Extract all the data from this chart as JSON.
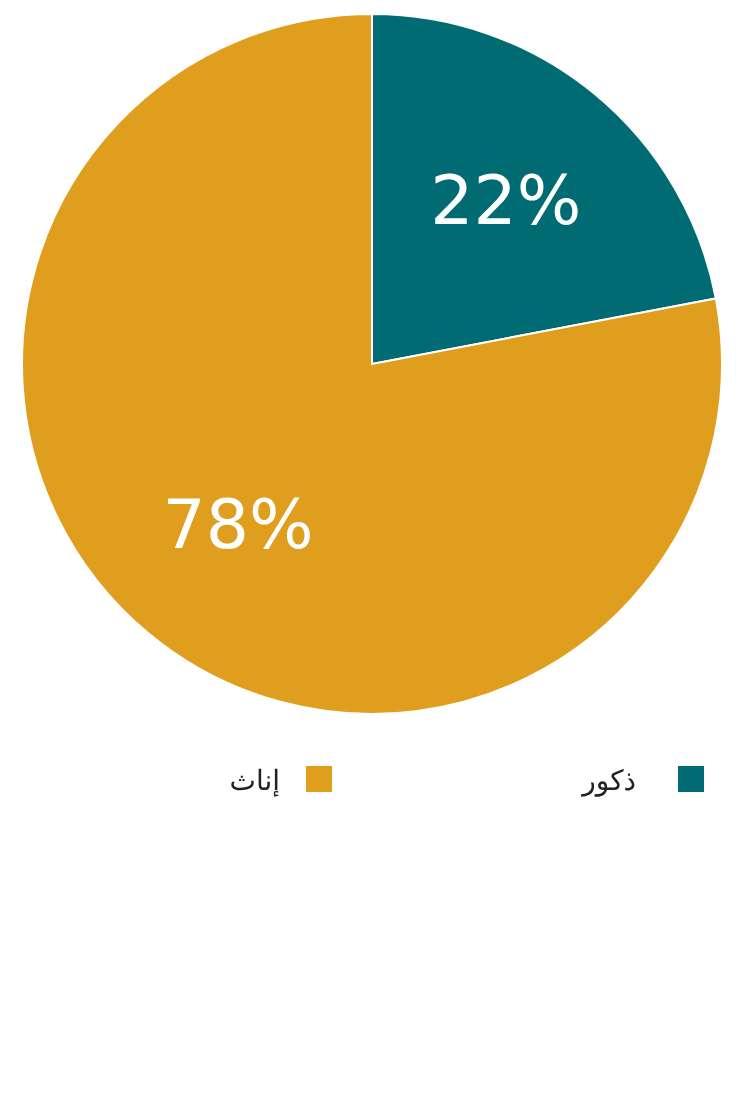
{
  "chart_data": {
    "type": "pie",
    "categories": [
      "ذكور",
      "إناث"
    ],
    "values": [
      22,
      78
    ],
    "colors": [
      "#006b72",
      "#e09e1e"
    ],
    "value_labels": [
      "22%",
      "78%"
    ],
    "legend": "bottom"
  }
}
